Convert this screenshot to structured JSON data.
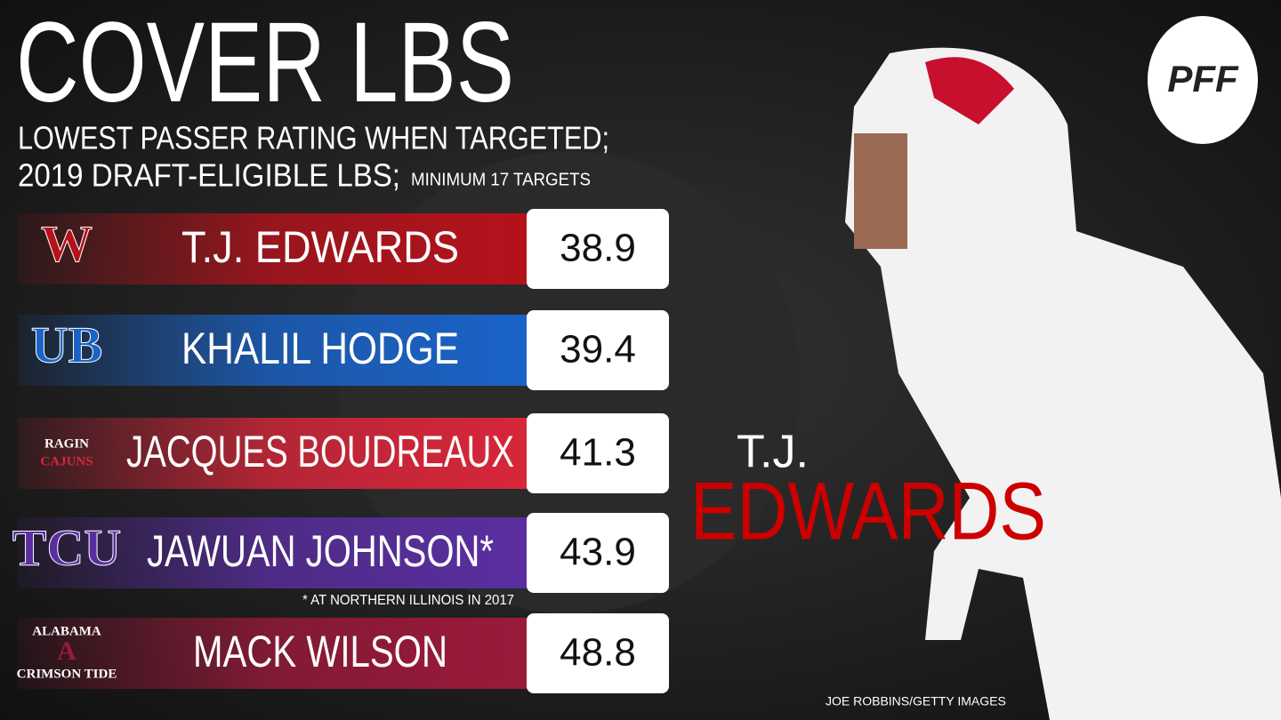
{
  "header": {
    "title": "COVER LBS",
    "subtitle_line1": "LOWEST PASSER RATING WHEN TARGETED;",
    "subtitle_line2": "2019 DRAFT-ELIGIBLE LBS;",
    "subtitle_note": "MINIMUM 17 TARGETS"
  },
  "brand": "PFF",
  "rows": [
    {
      "logo": [
        "W"
      ],
      "name": "T.J. EDWARDS",
      "value": 38.9,
      "color": "#b5121b"
    },
    {
      "logo": [
        "UB"
      ],
      "name": "KHALIL HODGE",
      "value": 39.4,
      "color": "#1a63c8"
    },
    {
      "logo": [
        "RAGIN",
        "CAJUNS"
      ],
      "name": "JACQUES BOUDREAUX",
      "value": 41.3,
      "color": "#d8263a"
    },
    {
      "logo": [
        "TCU"
      ],
      "name": "JAWUAN JOHNSON*",
      "value": 43.9,
      "color": "#5a2ea0"
    },
    {
      "logo": [
        "ALABAMA",
        "A",
        "CRIMSON TIDE"
      ],
      "name": "MACK WILSON",
      "value": 48.8,
      "color": "#9b1a3a"
    }
  ],
  "footnote": "* AT NORTHERN ILLINOIS IN 2017",
  "featured": {
    "first": "T.J.",
    "last": "EDWARDS"
  },
  "credit": "JOE ROBBINS/GETTY IMAGES"
}
